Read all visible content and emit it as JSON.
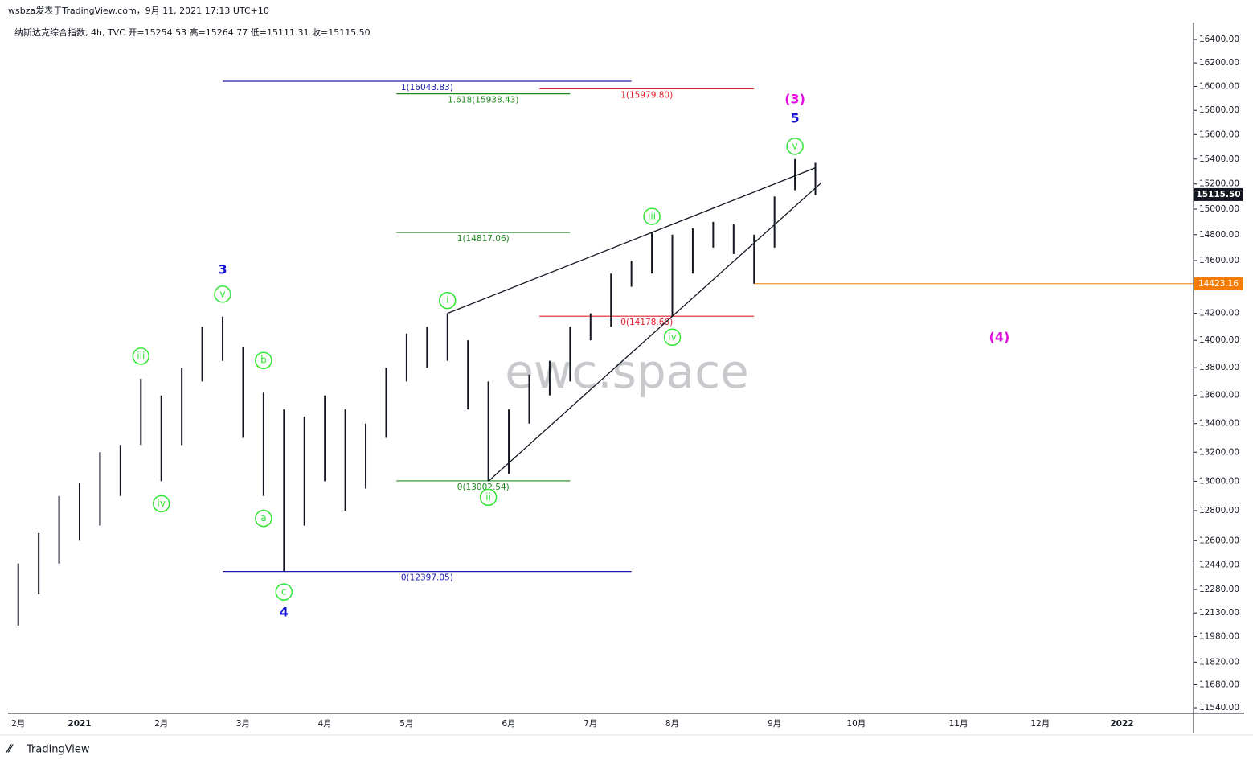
{
  "header": {
    "publisher": "wsbza发表于TradingView.com，9月 11, 2021 17:13 UTC+10",
    "symbol": "纳斯达克综合指数, 4h, TVC  开=15254.53  高=15264.77  低=15111.31  收=15115.50"
  },
  "watermark": "ewc.space",
  "footer": "TradingView",
  "chart_data": {
    "type": "range-bar",
    "categories": [
      "2月",
      null,
      null,
      "2021",
      null,
      null,
      null,
      "2月",
      null,
      null,
      null,
      "3月",
      null,
      null,
      null,
      "4月",
      null,
      null,
      null,
      "5月",
      null,
      null,
      null,
      null,
      "6月",
      null,
      null,
      null,
      "7月",
      null,
      null,
      null,
      "8月",
      null,
      null,
      null,
      null,
      "9月",
      null,
      null,
      null,
      "10月",
      null,
      null,
      null,
      null,
      "11月",
      null,
      null,
      null,
      "12月",
      null,
      null,
      null,
      "2022",
      null,
      null,
      null
    ],
    "high": [
      12450,
      12650,
      12900,
      12990,
      13200,
      13250,
      13720,
      13600,
      13800,
      14100,
      14175,
      13950,
      13620,
      13500,
      13450,
      13600,
      13500,
      13400,
      13800,
      14050,
      14100,
      14200,
      14000,
      13700,
      13500,
      13750,
      13850,
      14100,
      14200,
      14500,
      14600,
      14817,
      14800,
      14850,
      14900,
      14880,
      14800,
      15100,
      15400,
      15370,
      null,
      null,
      null,
      null,
      null,
      null,
      null,
      null,
      null,
      null,
      null,
      null,
      null,
      null,
      null,
      null,
      null,
      null
    ],
    "low": [
      12050,
      12250,
      12450,
      12600,
      12700,
      12900,
      13250,
      13000,
      13250,
      13700,
      13850,
      13300,
      12900,
      12400,
      12700,
      13000,
      12800,
      12950,
      13300,
      13700,
      13800,
      13850,
      13500,
      13000,
      13050,
      13400,
      13600,
      13700,
      14000,
      14100,
      14400,
      14500,
      14178,
      14500,
      14700,
      14650,
      14423,
      14700,
      15150,
      15111,
      null,
      null,
      null,
      null,
      null,
      null,
      null,
      null,
      null,
      null,
      null,
      null,
      null,
      null,
      null,
      null,
      null,
      null
    ],
    "color": "#131722",
    "log_scale": true,
    "ylim": [
      11506,
      16533
    ],
    "yticks": [
      {
        "value": 16400,
        "label": "16400.00"
      },
      {
        "value": 16200,
        "label": "16200.00"
      },
      {
        "value": 16000,
        "label": "16000.00"
      },
      {
        "value": 15800,
        "label": "15800.00"
      },
      {
        "value": 15600,
        "label": "15600.00"
      },
      {
        "value": 15400,
        "label": "15400.00"
      },
      {
        "value": 15200,
        "label": "15200.00"
      },
      {
        "value": 15000,
        "label": "15000.00"
      },
      {
        "value": 14800,
        "label": "14800.00"
      },
      {
        "value": 14600,
        "label": "14600.00"
      },
      {
        "value": 14200,
        "label": "14200.00"
      },
      {
        "value": 14000,
        "label": "14000.00"
      },
      {
        "value": 13800,
        "label": "13800.00"
      },
      {
        "value": 13600,
        "label": "13600.00"
      },
      {
        "value": 13400,
        "label": "13400.00"
      },
      {
        "value": 13200,
        "label": "13200.00"
      },
      {
        "value": 13000,
        "label": "13000.00"
      },
      {
        "value": 12800,
        "label": "12800.00"
      },
      {
        "value": 12600,
        "label": "12600.00"
      },
      {
        "value": 12440,
        "label": "12440.00"
      },
      {
        "value": 12280,
        "label": "12280.00"
      },
      {
        "value": 12130,
        "label": "12130.00"
      },
      {
        "value": 11980,
        "label": "11980.00"
      },
      {
        "value": 11820,
        "label": "11820.00"
      },
      {
        "value": 11680,
        "label": "11680.00"
      },
      {
        "value": 11540,
        "label": "11540.00"
      }
    ],
    "fib_levels": [
      {
        "value": 16043.83,
        "label": "1(16043.83)",
        "color": "#1a1aa8"
      },
      {
        "value": 12397.05,
        "label": "0(12397.05)",
        "color": "#1a1aa8"
      },
      {
        "value": 15938.43,
        "label": "1.618(15938.43)",
        "color": "#1e8c1e"
      },
      {
        "value": 13002.54,
        "label": "0(13002.54)",
        "color": "#1e8c1e"
      },
      {
        "value": 14817.06,
        "label": "1(14817.06)",
        "color": "#1e8c1e"
      },
      {
        "value": 15979.8,
        "label": "1(15979.80)",
        "color": "#e0202a"
      },
      {
        "value": 14178.66,
        "label": "0(14178.66)",
        "color": "#e0202a"
      }
    ],
    "wave_labels": [
      {
        "text": "iii",
        "color": "#2ee62e"
      },
      {
        "text": "iv",
        "color": "#2ee62e"
      },
      {
        "text": "v",
        "color": "#2ee62e"
      },
      {
        "text": "a",
        "color": "#2ee62e"
      },
      {
        "text": "b",
        "color": "#2ee62e"
      },
      {
        "text": "c",
        "color": "#2ee62e"
      },
      {
        "text": "i",
        "color": "#2ee62e"
      },
      {
        "text": "ii",
        "color": "#2ee62e"
      },
      {
        "text": "iii",
        "color": "#2ee62e"
      },
      {
        "text": "iv",
        "color": "#2ee62e"
      },
      {
        "text": "v",
        "color": "#2ee62e"
      },
      {
        "text": "3",
        "color": "#1414d2"
      },
      {
        "text": "4",
        "color": "#1414d2"
      },
      {
        "text": "5",
        "color": "#1414d2"
      },
      {
        "text": "(3)",
        "color": "#e010e0"
      },
      {
        "text": "(4)",
        "color": "#e010e0"
      }
    ],
    "last_price": {
      "value": 15115.5,
      "label": "15115.50",
      "color": "#131722"
    },
    "level_line": {
      "value": 14423.16,
      "label": "14423.16",
      "color": "#f57c00"
    }
  }
}
